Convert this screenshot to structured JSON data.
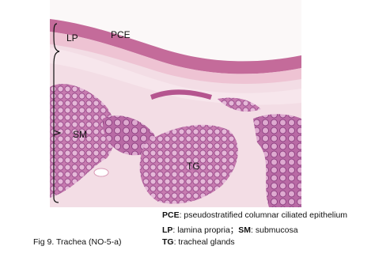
{
  "image": {
    "labels": [
      "PCE",
      "LP",
      "SM",
      "TG"
    ]
  },
  "caption": "Fig 9. Trachea (NO-5-a)",
  "legend": [
    [
      {
        "abbr": "PCE",
        "text": ": pseudostratified columnar ciliated epithelium"
      }
    ],
    [
      {
        "abbr": "LP",
        "text": ": lamina propria；"
      },
      {
        "abbr": "SM",
        "text": ": submucosa"
      }
    ],
    [
      {
        "abbr": "TG",
        "text": ": tracheal glands"
      }
    ]
  ]
}
